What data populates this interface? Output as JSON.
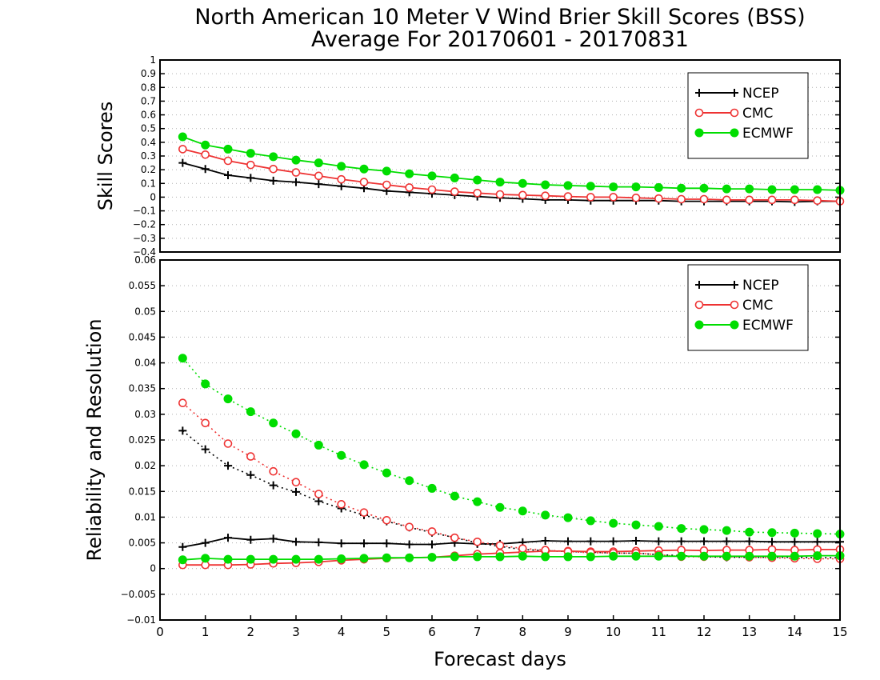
{
  "chart_data": [
    {
      "type": "line",
      "title": "North American 10 Meter V Wind Brier Skill Scores (BSS)",
      "subtitle": "Average For 20170601 - 20170831",
      "ylabel": "Skill Scores",
      "xlabel": "Forecast days",
      "ylim": [
        -0.4,
        1
      ],
      "yticks": [
        "−0.4",
        "−0.3",
        "−0.2",
        "−0.1",
        "0",
        "0.1",
        "0.2",
        "0.3",
        "0.4",
        "0.5",
        "0.6",
        "0.7",
        "0.8",
        "0.9",
        "1"
      ],
      "xlim": [
        0,
        15
      ],
      "grid": true,
      "legend_position": "top-right",
      "x": [
        0.5,
        1,
        1.5,
        2,
        2.5,
        3,
        3.5,
        4,
        4.5,
        5,
        5.5,
        6,
        6.5,
        7,
        7.5,
        8,
        8.5,
        9,
        9.5,
        10,
        10.5,
        11,
        11.5,
        12,
        12.5,
        13,
        13.5,
        14,
        14.5,
        15
      ],
      "series": [
        {
          "name": "NCEP",
          "color": "#000000",
          "marker": "plus",
          "values": [
            0.25,
            0.205,
            0.16,
            0.14,
            0.12,
            0.11,
            0.095,
            0.08,
            0.065,
            0.045,
            0.035,
            0.025,
            0.015,
            0.005,
            -0.005,
            -0.012,
            -0.02,
            -0.02,
            -0.025,
            -0.025,
            -0.025,
            -0.025,
            -0.03,
            -0.03,
            -0.03,
            -0.03,
            -0.03,
            -0.035,
            -0.03,
            -0.03
          ]
        },
        {
          "name": "CMC",
          "color": "#ee3333",
          "marker": "open-circle",
          "values": [
            0.35,
            0.31,
            0.265,
            0.235,
            0.205,
            0.18,
            0.155,
            0.13,
            0.11,
            0.09,
            0.07,
            0.055,
            0.04,
            0.03,
            0.02,
            0.015,
            0.01,
            0.005,
            0.0,
            0.0,
            -0.005,
            -0.01,
            -0.015,
            -0.015,
            -0.02,
            -0.02,
            -0.02,
            -0.02,
            -0.025,
            -0.03
          ]
        },
        {
          "name": "ECMWF",
          "color": "#00dd00",
          "marker": "filled-circle",
          "values": [
            0.44,
            0.38,
            0.35,
            0.32,
            0.295,
            0.27,
            0.25,
            0.225,
            0.205,
            0.19,
            0.17,
            0.155,
            0.14,
            0.125,
            0.11,
            0.1,
            0.09,
            0.085,
            0.08,
            0.075,
            0.075,
            0.07,
            0.065,
            0.065,
            0.06,
            0.06,
            0.055,
            0.055,
            0.055,
            0.05
          ]
        }
      ]
    },
    {
      "type": "line",
      "ylabel": "Reliability and Resolution",
      "xlabel": "Forecast days",
      "ylim": [
        -0.01,
        0.06
      ],
      "yticks": [
        "−0.01",
        "−0.005",
        "0",
        "0.005",
        "0.01",
        "0.015",
        "0.02",
        "0.025",
        "0.03",
        "0.035",
        "0.04",
        "0.045",
        "0.05",
        "0.055",
        "0.06"
      ],
      "xlim": [
        0,
        15
      ],
      "xticks": [
        "0",
        "1",
        "2",
        "3",
        "4",
        "5",
        "6",
        "7",
        "8",
        "9",
        "10",
        "11",
        "12",
        "13",
        "14",
        "15"
      ],
      "grid": true,
      "legend_position": "top-right",
      "x": [
        0.5,
        1,
        1.5,
        2,
        2.5,
        3,
        3.5,
        4,
        4.5,
        5,
        5.5,
        6,
        6.5,
        7,
        7.5,
        8,
        8.5,
        9,
        9.5,
        10,
        10.5,
        11,
        11.5,
        12,
        12.5,
        13,
        13.5,
        14,
        14.5,
        15
      ],
      "series": [
        {
          "name": "NCEP",
          "color": "#000000",
          "marker": "plus",
          "style": "solid",
          "values": [
            0.0042,
            0.005,
            0.006,
            0.0056,
            0.0058,
            0.0052,
            0.0051,
            0.0049,
            0.0049,
            0.0049,
            0.0047,
            0.0047,
            0.005,
            0.0048,
            0.0048,
            0.0051,
            0.0054,
            0.0053,
            0.0053,
            0.0053,
            0.0054,
            0.0053,
            0.0053,
            0.0053,
            0.0053,
            0.0053,
            0.0052,
            0.0052,
            0.0052,
            0.0052
          ]
        },
        {
          "name": "NCEP",
          "color": "#000000",
          "marker": "plus",
          "style": "dotted",
          "values": [
            0.0268,
            0.0232,
            0.02,
            0.0182,
            0.0162,
            0.0149,
            0.0131,
            0.0117,
            0.0104,
            0.0092,
            0.008,
            0.007,
            0.006,
            0.005,
            0.0043,
            0.0037,
            0.0035,
            0.0033,
            0.0032,
            0.003,
            0.003,
            0.0027,
            0.0025,
            0.0023,
            0.0022,
            0.0022,
            0.0022,
            0.0022,
            0.0021,
            0.0021
          ]
        },
        {
          "name": "CMC",
          "color": "#ee3333",
          "marker": "open-circle",
          "style": "solid",
          "values": [
            0.0007,
            0.0007,
            0.0007,
            0.0008,
            0.001,
            0.0011,
            0.0013,
            0.0016,
            0.0018,
            0.002,
            0.0021,
            0.0022,
            0.0025,
            0.0028,
            0.003,
            0.0032,
            0.0034,
            0.0034,
            0.0033,
            0.0033,
            0.0034,
            0.0035,
            0.0036,
            0.0035,
            0.0036,
            0.0036,
            0.0037,
            0.0036,
            0.0037,
            0.0037
          ]
        },
        {
          "name": "CMC",
          "color": "#ee3333",
          "marker": "open-circle",
          "style": "dotted",
          "values": [
            0.0322,
            0.0283,
            0.0243,
            0.0218,
            0.0189,
            0.0168,
            0.0145,
            0.0125,
            0.0109,
            0.0094,
            0.0081,
            0.0072,
            0.006,
            0.0052,
            0.0045,
            0.0039,
            0.0036,
            0.0033,
            0.0031,
            0.003,
            0.003,
            0.0027,
            0.0023,
            0.0023,
            0.0023,
            0.0022,
            0.0021,
            0.002,
            0.0019,
            0.0019
          ]
        },
        {
          "name": "ECMWF",
          "color": "#00dd00",
          "marker": "filled-circle",
          "style": "solid",
          "values": [
            0.0017,
            0.002,
            0.0018,
            0.0018,
            0.0018,
            0.0018,
            0.0018,
            0.0019,
            0.002,
            0.0021,
            0.0021,
            0.0022,
            0.0023,
            0.0023,
            0.0023,
            0.0024,
            0.0023,
            0.0023,
            0.0023,
            0.0024,
            0.0024,
            0.0024,
            0.0024,
            0.0024,
            0.0024,
            0.0024,
            0.0024,
            0.0024,
            0.0025,
            0.0025
          ]
        },
        {
          "name": "ECMWF",
          "color": "#00dd00",
          "marker": "filled-circle",
          "style": "dotted",
          "values": [
            0.0409,
            0.0359,
            0.033,
            0.0305,
            0.0283,
            0.0262,
            0.024,
            0.022,
            0.0202,
            0.0186,
            0.0171,
            0.0156,
            0.0141,
            0.013,
            0.0119,
            0.0112,
            0.0104,
            0.0099,
            0.0093,
            0.0088,
            0.0085,
            0.0082,
            0.0078,
            0.0076,
            0.0074,
            0.0071,
            0.007,
            0.0069,
            0.0068,
            0.0067
          ]
        }
      ]
    }
  ]
}
